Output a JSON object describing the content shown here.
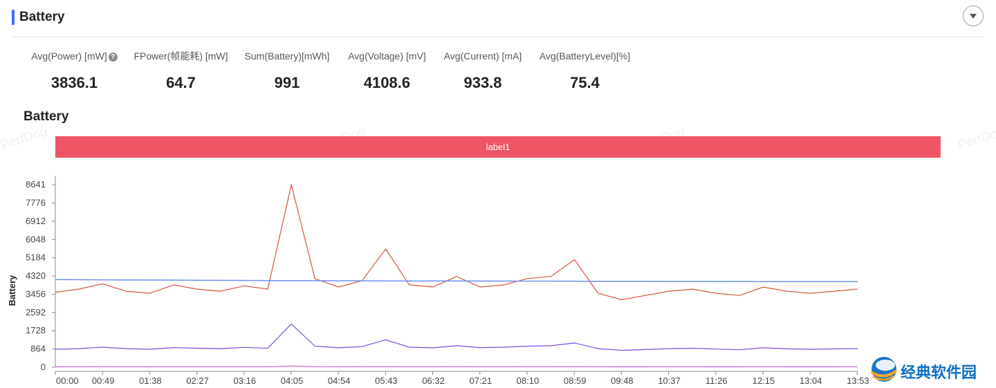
{
  "header": {
    "title": "Battery"
  },
  "stats": [
    {
      "label": "Avg(Power) [mW]",
      "value": "3836.1",
      "help": "?"
    },
    {
      "label": "FPower(帧能耗) [mW]",
      "value": "64.7"
    },
    {
      "label": "Sum(Battery)[mWh]",
      "value": "991"
    },
    {
      "label": "Avg(Voltage) [mV]",
      "value": "4108.6"
    },
    {
      "label": "Avg(Current) [mA]",
      "value": "933.8"
    },
    {
      "label": "Avg(BatteryLevel)[%]",
      "value": "75.4"
    }
  ],
  "watermark": "PerfDog",
  "site_text": "经典软件园",
  "chart_data": {
    "type": "line",
    "title": "Battery",
    "ylabel": "Battery",
    "label_band": "label1",
    "ylim": [
      0,
      9072
    ],
    "yticks": [
      0,
      864,
      1728,
      2592,
      3456,
      4320,
      5184,
      6048,
      6912,
      7776,
      8641
    ],
    "xticks": [
      "00:00",
      "00:49",
      "01:38",
      "02:27",
      "03:16",
      "04:05",
      "04:54",
      "05:43",
      "06:32",
      "07:21",
      "08:10",
      "08:59",
      "09:48",
      "10:37",
      "11:26",
      "12:15",
      "13:04",
      "13:53"
    ],
    "x_minutes": [
      0,
      25,
      50,
      75,
      100,
      125,
      150,
      175,
      200,
      225,
      250,
      275,
      300,
      325,
      350,
      375,
      400,
      425,
      450,
      475,
      500,
      525,
      550,
      575,
      600,
      625,
      650,
      675,
      700,
      725,
      750,
      775,
      800,
      825,
      850
    ],
    "series": [
      {
        "color": "#d9533a",
        "values": [
          3550,
          3700,
          3950,
          3600,
          3500,
          3900,
          3700,
          3600,
          3850,
          3700,
          8641,
          4200,
          3800,
          4100,
          5600,
          3900,
          3800,
          4300,
          3800,
          3900,
          4200,
          4300,
          5100,
          3500,
          3200,
          3400,
          3600,
          3700,
          3500,
          3400,
          3800,
          3600,
          3500,
          3600,
          3700
        ]
      },
      {
        "color": "#6c8ff0",
        "values": [
          4150,
          4145,
          4140,
          4135,
          4130,
          4125,
          4120,
          4115,
          4110,
          4105,
          4100,
          4098,
          4095,
          4092,
          4090,
          4088,
          4086,
          4084,
          4082,
          4080,
          4078,
          4076,
          4074,
          4072,
          4070,
          4068,
          4066,
          4064,
          4062,
          4060,
          4058,
          4056,
          4054,
          4052,
          4050
        ]
      },
      {
        "color": "#7b4be0",
        "values": [
          850,
          880,
          950,
          880,
          850,
          930,
          900,
          880,
          940,
          900,
          2050,
          1000,
          920,
          980,
          1300,
          950,
          920,
          1020,
          930,
          950,
          1000,
          1020,
          1150,
          880,
          800,
          840,
          880,
          900,
          860,
          830,
          920,
          870,
          850,
          870,
          880
        ]
      },
      {
        "color": "#c15ad6",
        "values": [
          20,
          22,
          25,
          22,
          20,
          24,
          22,
          22,
          24,
          22,
          60,
          26,
          24,
          25,
          30,
          24,
          23,
          26,
          24,
          24,
          25,
          26,
          28,
          22,
          20,
          21,
          22,
          22,
          21,
          20,
          22,
          21,
          21,
          21,
          22
        ]
      }
    ]
  }
}
